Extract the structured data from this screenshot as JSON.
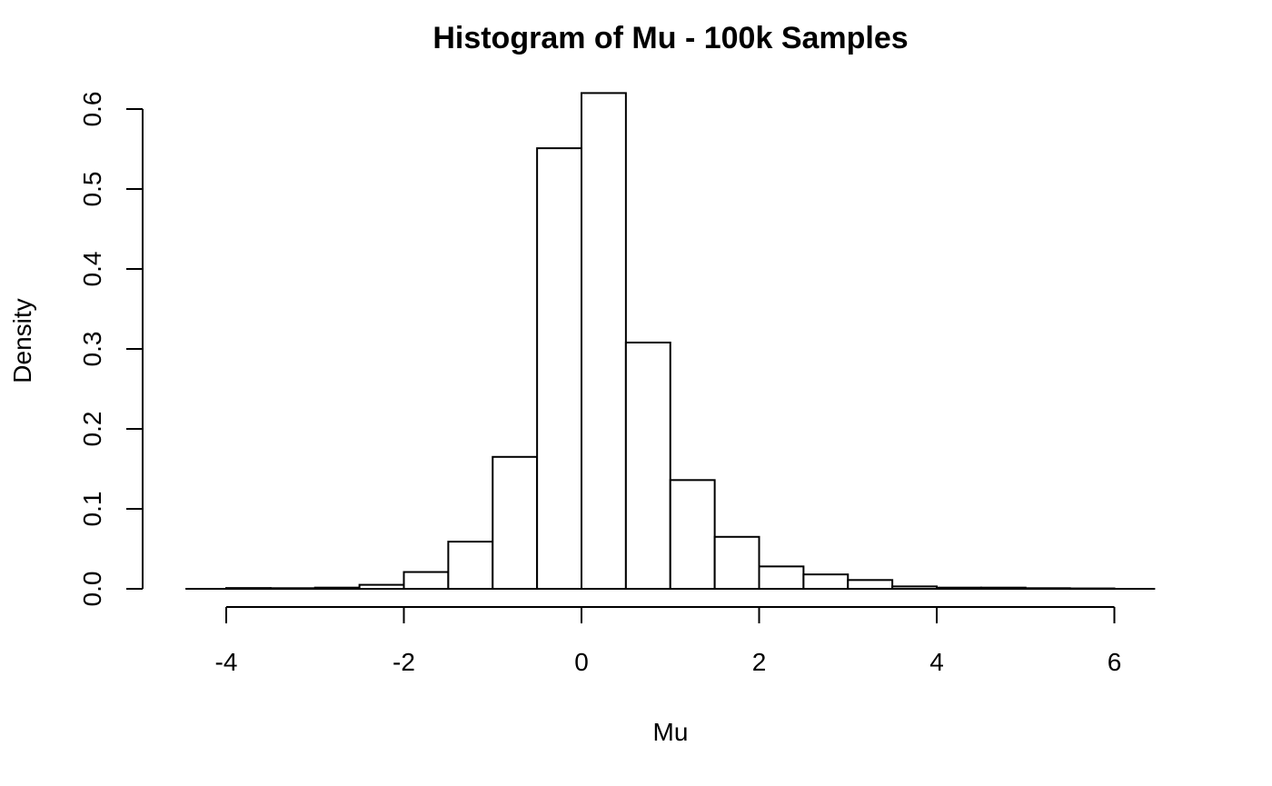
{
  "chart_data": {
    "type": "bar",
    "title": "Histogram of Mu - 100k Samples",
    "xlabel": "Mu",
    "ylabel": "Density",
    "xlim": [
      -4.5,
      6.5
    ],
    "ylim": [
      0,
      0.62
    ],
    "x_ticks": [
      -4,
      -2,
      0,
      2,
      4,
      6
    ],
    "x_tick_labels": [
      "-4",
      "-2",
      "0",
      "2",
      "4",
      "6"
    ],
    "y_ticks": [
      0.0,
      0.1,
      0.2,
      0.3,
      0.4,
      0.5,
      0.6
    ],
    "y_tick_labels": [
      "0.0",
      "0.1",
      "0.2",
      "0.3",
      "0.4",
      "0.5",
      "0.6"
    ],
    "bin_width": 0.5,
    "bins": [
      {
        "start": -4.0,
        "end": -3.5,
        "density": 0.001
      },
      {
        "start": -3.5,
        "end": -3.0,
        "density": 0.0008
      },
      {
        "start": -3.0,
        "end": -2.5,
        "density": 0.0015
      },
      {
        "start": -2.5,
        "end": -2.0,
        "density": 0.005
      },
      {
        "start": -2.0,
        "end": -1.5,
        "density": 0.021
      },
      {
        "start": -1.5,
        "end": -1.0,
        "density": 0.059
      },
      {
        "start": -1.0,
        "end": -0.5,
        "density": 0.165
      },
      {
        "start": -0.5,
        "end": 0.0,
        "density": 0.551
      },
      {
        "start": 0.0,
        "end": 0.5,
        "density": 0.62
      },
      {
        "start": 0.5,
        "end": 1.0,
        "density": 0.308
      },
      {
        "start": 1.0,
        "end": 1.5,
        "density": 0.136
      },
      {
        "start": 1.5,
        "end": 2.0,
        "density": 0.065
      },
      {
        "start": 2.0,
        "end": 2.5,
        "density": 0.028
      },
      {
        "start": 2.5,
        "end": 3.0,
        "density": 0.018
      },
      {
        "start": 3.0,
        "end": 3.5,
        "density": 0.011
      },
      {
        "start": 3.5,
        "end": 4.0,
        "density": 0.003
      },
      {
        "start": 4.0,
        "end": 4.5,
        "density": 0.0015
      },
      {
        "start": 4.5,
        "end": 5.0,
        "density": 0.0015
      },
      {
        "start": 5.0,
        "end": 5.5,
        "density": 0.0008
      },
      {
        "start": 5.5,
        "end": 6.0,
        "density": 0.0005
      }
    ],
    "grid": false,
    "legend": false
  }
}
